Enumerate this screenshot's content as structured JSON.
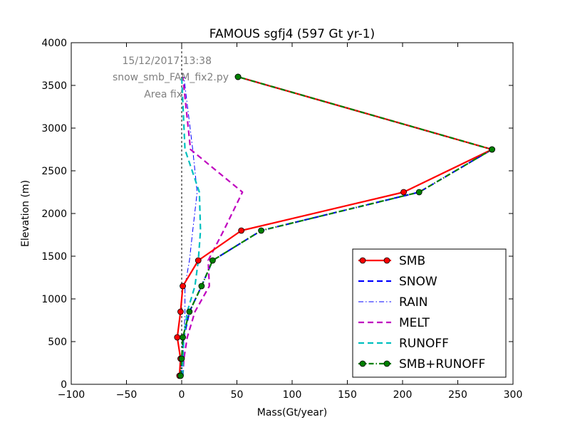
{
  "chart_data": {
    "type": "line",
    "title": "FAMOUS sgfj4 (597 Gt yr-1)",
    "xlabel": "Mass(Gt/year)",
    "ylabel": "Elevation (m)",
    "xlim": [
      -100,
      300
    ],
    "ylim": [
      0,
      4000
    ],
    "x_ticks": [
      "−100",
      "−50",
      "0",
      "50",
      "100",
      "150",
      "200",
      "250",
      "300"
    ],
    "x_tick_values": [
      -100,
      -50,
      0,
      50,
      100,
      150,
      200,
      250,
      300
    ],
    "y_ticks": [
      "0",
      "500",
      "1000",
      "1500",
      "2000",
      "2500",
      "3000",
      "3500",
      "4000"
    ],
    "y_tick_values": [
      0,
      500,
      1000,
      1500,
      2000,
      2500,
      3000,
      3500,
      4000
    ],
    "annotations": [
      "15/12/2017 13:38",
      "snow_smb_FAM_fix2.py",
      "Area fix"
    ],
    "legend_position": "lower-right",
    "zero_line": true,
    "series": [
      {
        "name": "SMB",
        "color": "#ff0000",
        "style": "solid-marker",
        "x": [
          -2,
          -1,
          -4,
          -1,
          1,
          15,
          54,
          201,
          281,
          51
        ],
        "y": [
          100,
          300,
          550,
          850,
          1150,
          1450,
          1800,
          2250,
          2750,
          3600
        ]
      },
      {
        "name": "SNOW",
        "color": "#0000ff",
        "style": "dashed",
        "x": [
          -1,
          0,
          2,
          7,
          18,
          28,
          72,
          215,
          281,
          51
        ],
        "y": [
          100,
          300,
          550,
          850,
          1150,
          1450,
          1800,
          2250,
          2750,
          3600
        ]
      },
      {
        "name": "RAIN",
        "color": "#0000ff",
        "style": "dashdot",
        "x": [
          0,
          1,
          2,
          3,
          3,
          7,
          10,
          14,
          10,
          2
        ],
        "y": [
          100,
          300,
          550,
          850,
          1150,
          1450,
          1800,
          2250,
          2750,
          3600
        ]
      },
      {
        "name": "MELT",
        "color": "#bf00bf",
        "style": "dashed",
        "x": [
          1,
          2,
          5,
          12,
          25,
          24,
          38,
          55,
          8,
          1
        ],
        "y": [
          100,
          300,
          550,
          850,
          1150,
          1450,
          1800,
          2250,
          2750,
          3600
        ]
      },
      {
        "name": "RUNOFF",
        "color": "#00bfbf",
        "style": "dashed",
        "x": [
          1,
          1,
          2,
          5,
          12,
          15,
          17,
          16,
          3,
          0
        ],
        "y": [
          100,
          300,
          550,
          850,
          1150,
          1450,
          1800,
          2250,
          2750,
          3600
        ]
      },
      {
        "name": "SMB+RUNOFF",
        "color": "#008000",
        "style": "dashdot-marker",
        "x": [
          -1,
          0,
          1,
          7,
          18,
          28,
          72,
          215,
          281,
          51
        ],
        "y": [
          100,
          300,
          550,
          850,
          1150,
          1450,
          1800,
          2250,
          2750,
          3600
        ]
      }
    ]
  }
}
